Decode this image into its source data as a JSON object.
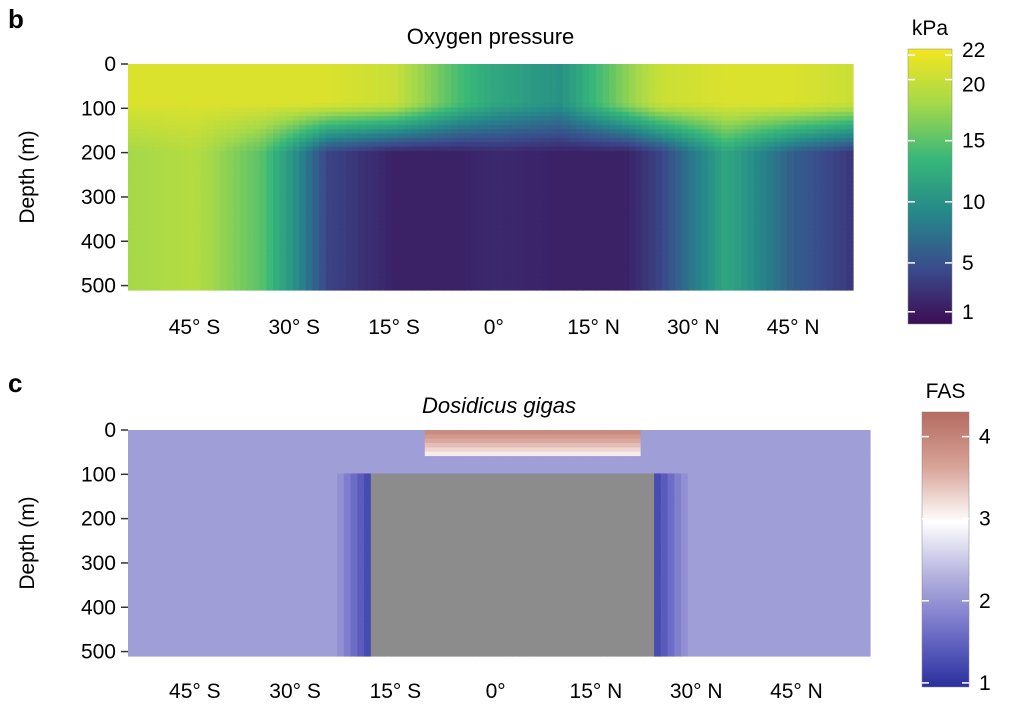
{
  "chart_data": [
    {
      "panel": "b",
      "type": "heatmap",
      "title": "Oxygen pressure",
      "xlabel": "",
      "ylabel": "Depth (m)",
      "x_ticks": [
        {
          "value": -45,
          "label": "45° S"
        },
        {
          "value": -30,
          "label": "30° S"
        },
        {
          "value": -15,
          "label": "15° S"
        },
        {
          "value": 0,
          "label": "0°"
        },
        {
          "value": 15,
          "label": "15° N"
        },
        {
          "value": 30,
          "label": "30° N"
        },
        {
          "value": 45,
          "label": "45° N"
        }
      ],
      "y_ticks": [
        0,
        100,
        200,
        300,
        400,
        500
      ],
      "xlim": [
        -55,
        54
      ],
      "ylim": [
        0,
        510
      ],
      "y_inverted": true,
      "colorbar": {
        "label": "kPa",
        "ticks": [
          1,
          5,
          10,
          15,
          20,
          22
        ],
        "range": [
          0,
          22.5
        ],
        "colors": [
          "#3c0d55",
          "#3a4b8c",
          "#25878a",
          "#37b779",
          "#a4d94a",
          "#f5e61f"
        ]
      },
      "field": {
        "description": "yellow oxygen-rich surface layer above 100 m at all latitudes except the equatorial upwelling; suboxic core from ~25° S to ~25° N below 100 m",
        "profiles_by_latitude": [
          {
            "lat": -55,
            "surface": 21,
            "deep": 18
          },
          {
            "lat": -45,
            "surface": 21,
            "deep": 19
          },
          {
            "lat": -35,
            "surface": 21,
            "deep": 15
          },
          {
            "lat": -30,
            "surface": 21,
            "deep": 10
          },
          {
            "lat": -25,
            "surface": 21,
            "deep": 4
          },
          {
            "lat": -15,
            "surface": 20,
            "deep": 1.5
          },
          {
            "lat": -5,
            "surface": 14,
            "deep": 1.5
          },
          {
            "lat": 0,
            "surface": 12,
            "deep": 2
          },
          {
            "lat": 10,
            "surface": 10,
            "deep": 1.5
          },
          {
            "lat": 20,
            "surface": 17,
            "deep": 1.5
          },
          {
            "lat": 25,
            "surface": 20,
            "deep": 4
          },
          {
            "lat": 35,
            "surface": 21,
            "deep": 12
          },
          {
            "lat": 45,
            "surface": 21,
            "deep": 6
          },
          {
            "lat": 54,
            "surface": 20,
            "deep": 3
          }
        ]
      }
    },
    {
      "panel": "c",
      "type": "heatmap",
      "title": "Dosidicus gigas",
      "xlabel": "",
      "ylabel": "Depth (m)",
      "x_ticks": [
        {
          "value": -45,
          "label": "45° S"
        },
        {
          "value": -30,
          "label": "30° S"
        },
        {
          "value": -15,
          "label": "15° S"
        },
        {
          "value": 0,
          "label": "0°"
        },
        {
          "value": 15,
          "label": "15° N"
        },
        {
          "value": 30,
          "label": "30° N"
        },
        {
          "value": 45,
          "label": "45° N"
        }
      ],
      "y_ticks": [
        0,
        100,
        200,
        300,
        400,
        500
      ],
      "xlim": [
        -55,
        56
      ],
      "ylim": [
        0,
        510
      ],
      "y_inverted": true,
      "colorbar": {
        "label": "FAS",
        "ticks": [
          1,
          2,
          3,
          4
        ],
        "range": [
          0.95,
          4.3
        ],
        "colors": [
          "#2a2f9e",
          "#6f6fc8",
          "#b3b0dd",
          "#ffffff",
          "#d8a398",
          "#b56b60"
        ]
      },
      "field": {
        "background_fas": 2.1,
        "surface_maximum": {
          "lat_range": [
            -11,
            22
          ],
          "depth_range": [
            0,
            60
          ],
          "fas": 4.0
        },
        "no_data_region": {
          "lat_range": [
            -19,
            24
          ],
          "depth_range": [
            95,
            510
          ],
          "fill": "#8c8c8c"
        },
        "edge_fas": 1.2
      }
    }
  ]
}
